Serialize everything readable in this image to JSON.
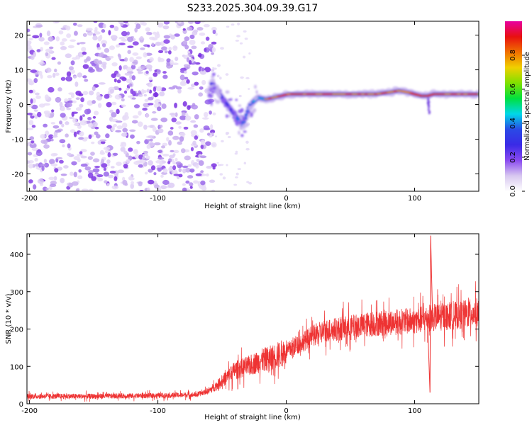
{
  "figure_title": "S233.2025.304.09.39.G17",
  "colors": {
    "snr_line": "#ee3333",
    "frame": "#000000"
  },
  "chart_data": [
    {
      "type": "heatmap",
      "title": "S233.2025.304.09.39.G17",
      "xlabel": "Height of straight line (km)",
      "ylabel": "Frequency (Hz)",
      "xlim": [
        -202,
        150
      ],
      "ylim": [
        -25,
        24
      ],
      "xticks": [
        -200,
        -100,
        0,
        100
      ],
      "yticks": [
        -20,
        -10,
        0,
        10,
        20
      ],
      "xtick_labels": [
        "-200",
        "-100",
        "0",
        "100"
      ],
      "ytick_labels": [
        "-20",
        "-10",
        "0",
        "10",
        "20"
      ],
      "colorbar": {
        "label": "Normalized spectral amplitude",
        "range": [
          0.0,
          1.0
        ],
        "ticks": [
          0.0,
          0.2,
          0.4,
          0.6,
          0.8
        ],
        "tick_labels": [
          "0.0",
          "0.2",
          "0.4",
          "0.6",
          "0.8"
        ],
        "colors": [
          "#ffffff",
          "#d8c8f0",
          "#8a4af0",
          "#3a2ae6",
          "#2a4ae6",
          "#00d8e8",
          "#00e040",
          "#80e000",
          "#f0d000",
          "#f07000",
          "#e81010",
          "#e800a0"
        ]
      },
      "noise_region_x": [
        -202,
        -58
      ],
      "ridge": {
        "x": [
          -58,
          -52,
          -46,
          -40,
          -34,
          -28,
          -22,
          -16,
          -10,
          -4,
          2,
          10,
          20,
          30,
          40,
          50,
          60,
          70,
          80,
          88,
          95,
          100,
          105,
          110,
          115,
          120,
          130,
          140,
          150
        ],
        "freq": [
          6,
          3,
          0,
          -3,
          -6,
          0,
          2,
          1.5,
          2,
          2.5,
          3,
          3,
          3,
          3,
          3,
          3,
          3,
          3,
          3.5,
          4,
          3.5,
          3,
          2.5,
          2.5,
          3,
          3,
          3,
          3,
          3
        ]
      }
    },
    {
      "type": "line",
      "xlabel": "Height of straight line (km)",
      "ylabel": "SNR (10 * v/v)",
      "xlim": [
        -202,
        150
      ],
      "ylim": [
        0,
        455
      ],
      "xticks": [
        -200,
        -100,
        0,
        100
      ],
      "yticks": [
        0,
        100,
        200,
        300,
        400
      ],
      "xtick_labels": [
        "-200",
        "-100",
        "0",
        "100"
      ],
      "ytick_labels": [
        "0",
        "100",
        "200",
        "300",
        "400"
      ],
      "trend": {
        "x": [
          -202,
          -150,
          -100,
          -70,
          -60,
          -50,
          -40,
          -30,
          -20,
          -10,
          0,
          10,
          20,
          30,
          40,
          50,
          60,
          70,
          80,
          90,
          100,
          105,
          110,
          112,
          114,
          120,
          130,
          140,
          150
        ],
        "y": [
          20,
          20,
          22,
          24,
          35,
          60,
          90,
          100,
          115,
          125,
          140,
          160,
          180,
          195,
          200,
          205,
          210,
          215,
          218,
          220,
          222,
          225,
          228,
          230,
          230,
          232,
          235,
          240,
          245
        ]
      },
      "spikes": {
        "x": [
          111.5,
          112,
          112.5,
          113
        ],
        "y": [
          80,
          30,
          450,
          380
        ]
      }
    }
  ]
}
